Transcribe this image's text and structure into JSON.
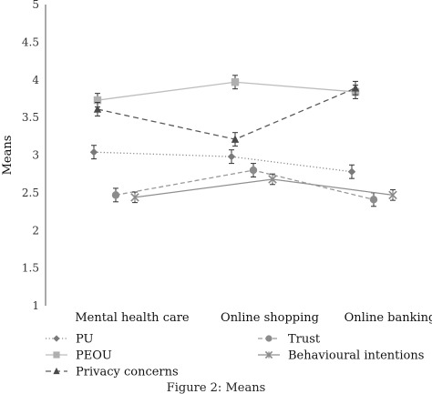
{
  "chart_data": {
    "type": "line",
    "ylabel": "Means",
    "ylim": [
      1,
      5
    ],
    "yticks": [
      "1",
      "1.5",
      "2",
      "2.5",
      "3",
      "3.5",
      "4",
      "4.5",
      "5"
    ],
    "categories": [
      "Mental health care",
      "Online shopping",
      "Online banking"
    ],
    "grid": false,
    "legend_position": "bottom",
    "series": [
      {
        "name": "PU",
        "values": [
          3.04,
          2.98,
          2.78
        ],
        "errors": [
          0.09,
          0.09,
          0.09
        ],
        "marker": "diamond",
        "dash": "dotted",
        "color": "#8a8a8a",
        "marker_color": "#7a7a7a"
      },
      {
        "name": "PEOU",
        "values": [
          3.73,
          3.97,
          3.84
        ],
        "errors": [
          0.09,
          0.09,
          0.09
        ],
        "marker": "square",
        "dash": "solid",
        "color": "#bdbdbd",
        "marker_color": "#b0b0b0"
      },
      {
        "name": "Privacy concerns",
        "values": [
          3.61,
          3.21,
          3.89
        ],
        "errors": [
          0.09,
          0.09,
          0.09
        ],
        "marker": "triangle",
        "dash": "dashed",
        "color": "#5a5a5a",
        "marker_color": "#4a4a4a"
      },
      {
        "name": "Trust",
        "values": [
          2.47,
          2.8,
          2.41
        ],
        "errors": [
          0.09,
          0.09,
          0.09
        ],
        "marker": "circle",
        "dash": "longdash",
        "color": "#9a9a9a",
        "marker_color": "#8c8c8c"
      },
      {
        "name": "Behavioural intentions",
        "values": [
          2.44,
          2.68,
          2.47
        ],
        "errors": [
          0.07,
          0.07,
          0.07
        ],
        "marker": "x",
        "dash": "solid",
        "color": "#909090",
        "marker_color": "#8a8a8a"
      }
    ]
  },
  "caption": "Figure 2: Means"
}
